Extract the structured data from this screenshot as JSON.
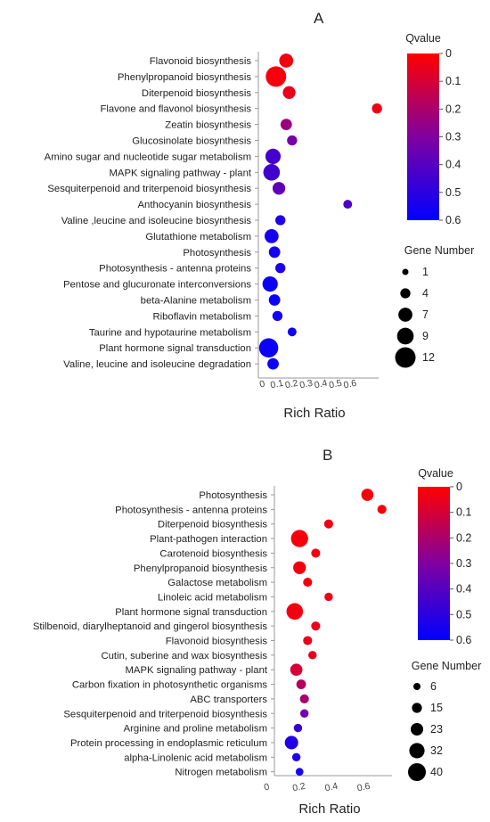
{
  "colors": {
    "low_q": "#ff0000",
    "mid_q": "#8000a0",
    "high_q": "#0000ff",
    "axis": "#999999"
  },
  "chart_data": [
    {
      "type": "scatter",
      "panel": "A",
      "xlabel": "Rich Ratio",
      "xlim": [
        0,
        0.7
      ],
      "x_ticks": [
        0,
        0.1,
        0.2,
        0.3,
        0.4,
        0.5,
        0.6
      ],
      "x_tick_labels": [
        "0",
        "0.1",
        "0.2",
        "0.3",
        "0.4",
        "0.5",
        "0.6"
      ],
      "categories": [
        "Flavonoid biosynthesis",
        "Phenylpropanoid biosynthesis",
        "Diterpenoid biosynthesis",
        "Flavone and flavonol biosynthesis",
        "Zeatin biosynthesis",
        "Glucosinolate biosynthesis",
        "Amino sugar and nucleotide sugar metabolism",
        "MAPK signaling pathway - plant",
        "Sesquiterpenoid and triterpenoid biosynthesis",
        "Anthocyanin biosynthesis",
        "Valine ,leucine and isoleucine biosynthesis",
        "Glutathione metabolism",
        "Photosynthesis",
        "Photosynthesis - antenna proteins",
        "Pentose and glucuronate interconversions",
        "beta-Alanine metabolism",
        "Riboflavin metabolism",
        "Taurine and hypotaurine metabolism",
        "Plant hormone signal transduction",
        "Valine, leucine and isoleucine degradation"
      ],
      "rich_ratio": [
        0.16,
        0.09,
        0.18,
        0.78,
        0.16,
        0.2,
        0.07,
        0.06,
        0.11,
        0.58,
        0.12,
        0.06,
        0.08,
        0.12,
        0.05,
        0.08,
        0.1,
        0.2,
        0.04,
        0.07
      ],
      "gene_number": [
        7,
        12,
        6,
        4,
        5,
        4,
        8,
        9,
        6,
        3,
        4,
        7,
        5,
        4,
        8,
        5,
        4,
        3,
        11,
        5
      ],
      "qvalue": [
        0.03,
        0.02,
        0.05,
        0.04,
        0.24,
        0.32,
        0.44,
        0.45,
        0.38,
        0.42,
        0.53,
        0.55,
        0.55,
        0.53,
        0.57,
        0.57,
        0.56,
        0.56,
        0.57,
        0.57
      ],
      "color_legend": {
        "title": "Qvalue",
        "min": 0,
        "max": 0.6,
        "ticks": [
          "0",
          "0.1",
          "0.2",
          "0.3",
          "0.4",
          "0.5",
          "0.6"
        ]
      },
      "size_legend": {
        "title": "Gene Number",
        "values": [
          1,
          4,
          7,
          9,
          12
        ]
      }
    },
    {
      "type": "scatter",
      "panel": "B",
      "xlabel": "Rich Ratio",
      "xlim": [
        0,
        0.8
      ],
      "x_ticks": [
        0,
        0.2,
        0.4,
        0.6
      ],
      "x_tick_labels": [
        "0",
        "0.2",
        "0.4",
        "0.6"
      ],
      "categories": [
        "Photosynthesis",
        "Photosynthesis - antenna proteins",
        "Diterpenoid biosynthesis",
        "Plant-pathogen interaction",
        "Carotenoid biosynthesis",
        "Phenylpropanoid biosynthesis",
        "Galactose metabolism",
        "Linoleic acid metabolism",
        "Plant hormone signal transduction",
        "Stilbenoid, diarylheptanoid and gingerol biosynthesis",
        "Flavonoid biosynthesis",
        "Cutin, suberine and wax biosynthesis",
        "MAPK signaling pathway - plant",
        "Carbon fixation in photosynthetic organisms",
        "ABC transporters",
        "Sesquiterpenoid and triterpenoid biosynthesis",
        "Arginine and proline metabolism",
        "Protein processing in endoplasmic reticulum",
        "alpha-Linolenic acid metabolism",
        "Nitrogen metabolism"
      ],
      "rich_ratio": [
        0.62,
        0.71,
        0.38,
        0.2,
        0.3,
        0.2,
        0.25,
        0.38,
        0.17,
        0.3,
        0.25,
        0.28,
        0.18,
        0.21,
        0.23,
        0.23,
        0.19,
        0.15,
        0.18,
        0.2
      ],
      "gene_number": [
        22,
        12,
        12,
        38,
        12,
        24,
        12,
        10,
        36,
        12,
        12,
        10,
        22,
        14,
        12,
        10,
        10,
        26,
        10,
        8
      ],
      "qvalue": [
        0.02,
        0.02,
        0.03,
        0.02,
        0.03,
        0.03,
        0.03,
        0.04,
        0.03,
        0.05,
        0.05,
        0.06,
        0.1,
        0.18,
        0.2,
        0.33,
        0.48,
        0.52,
        0.53,
        0.55
      ],
      "color_legend": {
        "title": "Qvalue",
        "min": 0,
        "max": 0.6,
        "ticks": [
          "0",
          "0.1",
          "0.2",
          "0.3",
          "0.4",
          "0.5",
          "0.6"
        ]
      },
      "size_legend": {
        "title": "Gene Number",
        "values": [
          6,
          15,
          23,
          32,
          40
        ]
      }
    }
  ]
}
